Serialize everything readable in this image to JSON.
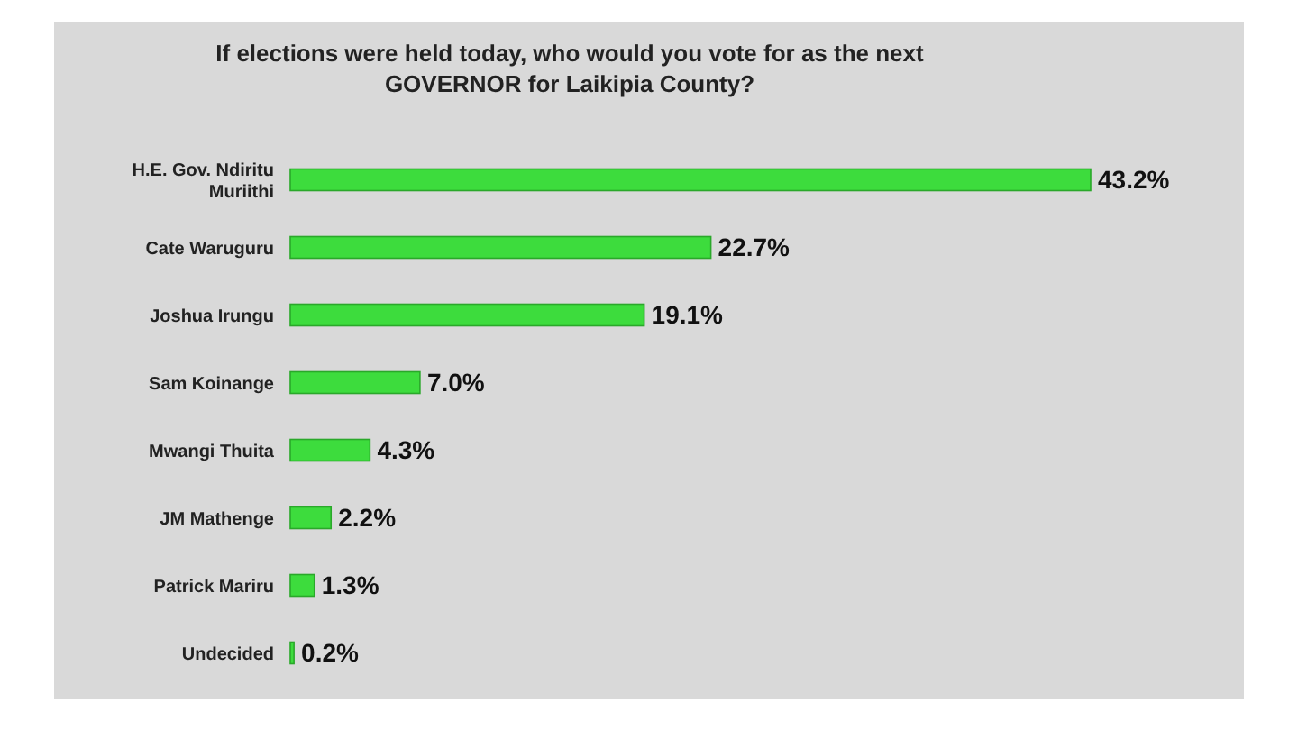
{
  "chart_data": {
    "type": "bar",
    "orientation": "horizontal",
    "title": "If elections were held today, who would you vote for as the next GOVERNOR for Laikipia County?",
    "categories": [
      "H.E. Gov. Ndiritu Muriithi",
      "Cate Waruguru",
      "Joshua Irungu",
      "Sam Koinange",
      "Mwangi Thuita",
      "JM Mathenge",
      "Patrick Mariru",
      "Undecided"
    ],
    "values": [
      43.2,
      22.7,
      19.1,
      7.0,
      4.3,
      2.2,
      1.3,
      0.2
    ],
    "value_labels": [
      "43.2%",
      "22.7%",
      "19.1%",
      "7.0%",
      "4.3%",
      "2.2%",
      "1.3%",
      "0.2%"
    ],
    "color": "#3ddc3d"
  }
}
